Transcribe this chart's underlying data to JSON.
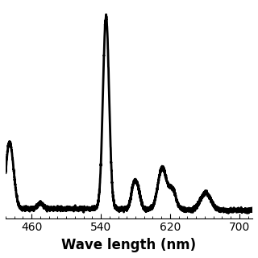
{
  "xlabel": "Wave length (nm)",
  "xlim": [
    430,
    715
  ],
  "ylim": [
    0,
    1.05
  ],
  "xticks": [
    460,
    540,
    620,
    700
  ],
  "grid_color": "#cccccc",
  "line_color": "#000000",
  "line_width": 2.0,
  "background_color": "#ffffff",
  "xlabel_fontsize": 12,
  "tick_fontsize": 10
}
